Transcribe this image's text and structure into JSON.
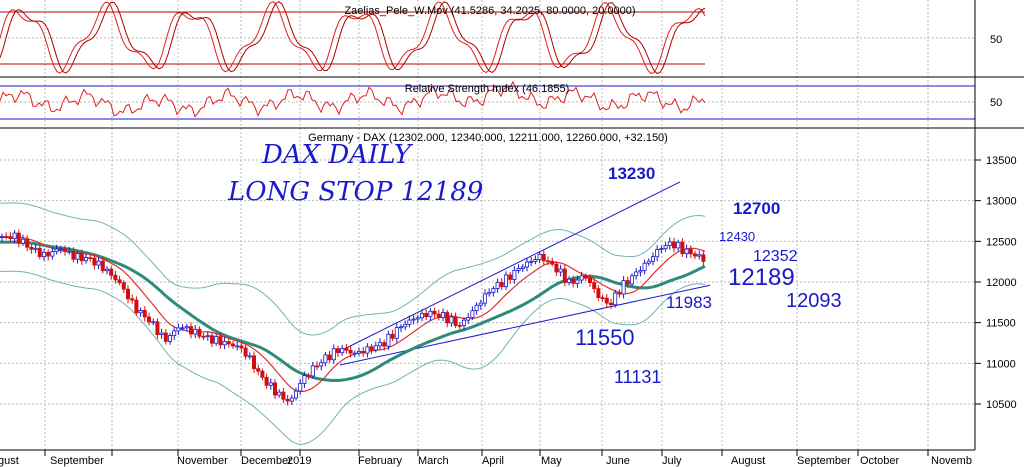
{
  "colors": {
    "background": "#ffffff",
    "grid": "#b8b8b8",
    "panel_border": "#000000",
    "stoch_fast": "#e02020",
    "stoch_slow": "#b00000",
    "stoch_levels": "#c00000",
    "rsi_line": "#e02020",
    "rsi_levels": "#1a1acc",
    "candle_up": "#1a1acc",
    "candle_down": "#d01010",
    "ma_short": "#e03030",
    "ma_long": "#2e8b7a",
    "bollinger": "#6fb5b0",
    "channel": "#1a1acc",
    "annotation": "#1a1acc"
  },
  "chart_data": [
    {
      "type": "line",
      "panel": "stochastic",
      "title": "Zaelias_Pele_W.Mov (41.5286, 34.2025, 80.0000, 20.0000)",
      "y_ticks": [
        50
      ],
      "levels": [
        80,
        20
      ]
    },
    {
      "type": "line",
      "panel": "rsi",
      "title": "Relative Strength Index (46.1855)",
      "y_ticks": [
        50
      ],
      "levels": [
        70,
        30
      ]
    },
    {
      "type": "candlestick",
      "panel": "price",
      "title": "Germany - DAX (12302.000, 12340.000, 12211.000, 12260.000, +32.150)",
      "x_tick_labels": [
        "gust",
        "September",
        "November",
        "December",
        "2019",
        "February",
        "March",
        "April",
        "May",
        "June",
        "July",
        "August",
        "September",
        "October",
        "Novemb"
      ],
      "y_ticks": [
        10500,
        11000,
        11500,
        12000,
        12500,
        13000,
        13500
      ],
      "ylim": [
        10200,
        13750
      ],
      "price_path": [
        [
          0,
          12550
        ],
        [
          15,
          12560
        ],
        [
          30,
          12420
        ],
        [
          45,
          12320
        ],
        [
          60,
          12420
        ],
        [
          75,
          12310
        ],
        [
          90,
          12280
        ],
        [
          105,
          12160
        ],
        [
          120,
          11980
        ],
        [
          135,
          11680
        ],
        [
          150,
          11520
        ],
        [
          165,
          11280
        ],
        [
          180,
          11460
        ],
        [
          195,
          11380
        ],
        [
          210,
          11300
        ],
        [
          225,
          11250
        ],
        [
          240,
          11200
        ],
        [
          250,
          11050
        ],
        [
          260,
          10850
        ],
        [
          270,
          10720
        ],
        [
          280,
          10600
        ],
        [
          290,
          10520
        ],
        [
          300,
          10760
        ],
        [
          312,
          10930
        ],
        [
          325,
          11060
        ],
        [
          340,
          11180
        ],
        [
          355,
          11120
        ],
        [
          370,
          11180
        ],
        [
          385,
          11260
        ],
        [
          400,
          11450
        ],
        [
          415,
          11560
        ],
        [
          430,
          11620
        ],
        [
          445,
          11570
        ],
        [
          460,
          11460
        ],
        [
          475,
          11680
        ],
        [
          490,
          11900
        ],
        [
          505,
          12020
        ],
        [
          520,
          12180
        ],
        [
          540,
          12320
        ],
        [
          555,
          12180
        ],
        [
          570,
          11980
        ],
        [
          585,
          12080
        ],
        [
          600,
          11800
        ],
        [
          610,
          11720
        ],
        [
          620,
          11920
        ],
        [
          635,
          12100
        ],
        [
          648,
          12250
        ],
        [
          660,
          12420
        ],
        [
          672,
          12480
        ],
        [
          685,
          12380
        ],
        [
          698,
          12320
        ],
        [
          705,
          12260
        ]
      ],
      "series": [
        {
          "name": "",
          "style": "moving-average-short"
        },
        {
          "name": "",
          "style": "moving-average-long"
        },
        {
          "name": "",
          "style": "bollinger-bands"
        }
      ],
      "annotations": [
        {
          "text": "DAX DAILY",
          "style": "handwritten"
        },
        {
          "text": "LONG STOP 12189",
          "style": "handwritten"
        },
        {
          "text": "13230"
        },
        {
          "text": "12700"
        },
        {
          "text": "12430"
        },
        {
          "text": "12352"
        },
        {
          "text": "12189"
        },
        {
          "text": "12093"
        },
        {
          "text": "11983"
        },
        {
          "text": "11550"
        },
        {
          "text": "11131"
        }
      ]
    }
  ]
}
